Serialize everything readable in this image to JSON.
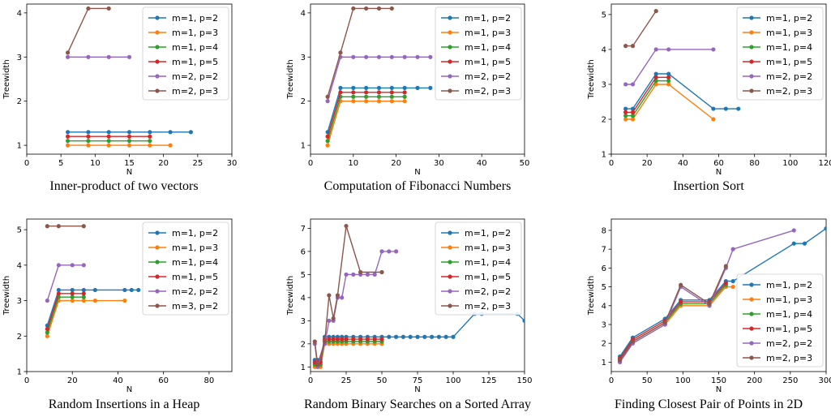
{
  "figure": {
    "colors": {
      "m=1, p=2": "#1f77b4",
      "m=1, p=3": "#ff7f0e",
      "m=1, p=4": "#2ca02c",
      "m=1, p=5": "#d62728",
      "m=2, p=2": "#9467bd",
      "m=2, p=3": "#8c564b",
      "m=3, p=2": "#8c564b"
    }
  },
  "chart_data": [
    {
      "type": "line",
      "caption": "Inner-product of two vectors",
      "xlabel": "N",
      "ylabel": "Treewidth",
      "xlim": [
        0,
        30
      ],
      "ylim": [
        0.8,
        4.2
      ],
      "xticks": [
        0,
        5,
        10,
        15,
        20,
        25,
        30
      ],
      "yticks": [
        1,
        2,
        3,
        4
      ],
      "legend": "top-right",
      "series": [
        {
          "name": "m=1, p=2",
          "x": [
            6,
            9,
            12,
            15,
            18,
            21,
            24
          ],
          "y": [
            1.3,
            1.3,
            1.3,
            1.3,
            1.3,
            1.3,
            1.3
          ]
        },
        {
          "name": "m=1, p=3",
          "x": [
            6,
            9,
            12,
            15,
            18,
            21
          ],
          "y": [
            1.0,
            1.0,
            1.0,
            1.0,
            1.0,
            1.0
          ]
        },
        {
          "name": "m=1, p=4",
          "x": [
            6,
            9,
            12,
            15,
            18
          ],
          "y": [
            1.1,
            1.1,
            1.1,
            1.1,
            1.1
          ]
        },
        {
          "name": "m=1, p=5",
          "x": [
            6,
            9,
            12,
            15,
            18
          ],
          "y": [
            1.2,
            1.2,
            1.2,
            1.2,
            1.2
          ]
        },
        {
          "name": "m=2, p=2",
          "x": [
            6,
            9,
            12,
            15
          ],
          "y": [
            3.0,
            3.0,
            3.0,
            3.0
          ]
        },
        {
          "name": "m=2, p=3",
          "x": [
            6,
            9,
            12
          ],
          "y": [
            3.1,
            4.1,
            4.1
          ]
        }
      ]
    },
    {
      "type": "line",
      "caption": "Computation of Fibonacci Numbers",
      "xlabel": "N",
      "ylabel": "Treewidth",
      "xlim": [
        0,
        50
      ],
      "ylim": [
        0.8,
        4.2
      ],
      "xticks": [
        0,
        10,
        20,
        30,
        40,
        50
      ],
      "yticks": [
        1,
        2,
        3,
        4
      ],
      "legend": "top-right",
      "series": [
        {
          "name": "m=1, p=2",
          "x": [
            4,
            7,
            10,
            13,
            16,
            19,
            22,
            25,
            28
          ],
          "y": [
            1.3,
            2.3,
            2.3,
            2.3,
            2.3,
            2.3,
            2.3,
            2.3,
            2.3
          ]
        },
        {
          "name": "m=1, p=3",
          "x": [
            4,
            7,
            10,
            13,
            16,
            19,
            22
          ],
          "y": [
            1.0,
            2.0,
            2.0,
            2.0,
            2.0,
            2.0,
            2.0
          ]
        },
        {
          "name": "m=1, p=4",
          "x": [
            4,
            7,
            10,
            13,
            16,
            19,
            22
          ],
          "y": [
            1.1,
            2.1,
            2.1,
            2.1,
            2.1,
            2.1,
            2.1
          ]
        },
        {
          "name": "m=1, p=5",
          "x": [
            4,
            7,
            10,
            13,
            16,
            19,
            22
          ],
          "y": [
            1.2,
            2.2,
            2.2,
            2.2,
            2.2,
            2.2,
            2.2
          ]
        },
        {
          "name": "m=2, p=2",
          "x": [
            4,
            7,
            10,
            13,
            16,
            19,
            22,
            25,
            28
          ],
          "y": [
            2.0,
            3.0,
            3.0,
            3.0,
            3.0,
            3.0,
            3.0,
            3.0,
            3.0
          ]
        },
        {
          "name": "m=2, p=3",
          "x": [
            4,
            7,
            10,
            13,
            16,
            19
          ],
          "y": [
            2.1,
            3.1,
            4.1,
            4.1,
            4.1,
            4.1
          ]
        }
      ]
    },
    {
      "type": "line",
      "caption": "Insertion Sort",
      "xlabel": "N",
      "ylabel": "Treewidth",
      "xlim": [
        0,
        120
      ],
      "ylim": [
        1,
        5.3
      ],
      "xticks": [
        0,
        20,
        40,
        60,
        80,
        100,
        120
      ],
      "yticks": [
        1,
        2,
        3,
        4,
        5
      ],
      "legend": "top-right",
      "series": [
        {
          "name": "m=1, p=2",
          "x": [
            8,
            12,
            25,
            32,
            57,
            64,
            71
          ],
          "y": [
            2.3,
            2.3,
            3.3,
            3.3,
            2.3,
            2.3,
            2.3
          ]
        },
        {
          "name": "m=1, p=3",
          "x": [
            8,
            12,
            25,
            32,
            57
          ],
          "y": [
            2.0,
            2.0,
            3.0,
            3.0,
            2.0
          ]
        },
        {
          "name": "m=1, p=4",
          "x": [
            8,
            12,
            25,
            32
          ],
          "y": [
            2.1,
            2.1,
            3.1,
            3.1
          ]
        },
        {
          "name": "m=1, p=5",
          "x": [
            8,
            12,
            25,
            32
          ],
          "y": [
            2.2,
            2.2,
            3.2,
            3.2
          ]
        },
        {
          "name": "m=2, p=2",
          "x": [
            8,
            12,
            25,
            32,
            57
          ],
          "y": [
            3.0,
            3.0,
            4.0,
            4.0,
            4.0
          ]
        },
        {
          "name": "m=2, p=3",
          "x": [
            8,
            12,
            25
          ],
          "y": [
            4.1,
            4.1,
            5.1
          ]
        }
      ]
    },
    {
      "type": "line",
      "caption": "Random Insertions in a Heap",
      "xlabel": "N",
      "ylabel": "Treewidth",
      "xlim": [
        0,
        90
      ],
      "ylim": [
        1,
        5.3
      ],
      "xticks": [
        0,
        20,
        40,
        60,
        80
      ],
      "yticks": [
        1,
        2,
        3,
        4,
        5
      ],
      "legend": "top-right",
      "series": [
        {
          "name": "m=1, p=2",
          "x": [
            9,
            14,
            20,
            25,
            30,
            43,
            46,
            49
          ],
          "y": [
            2.3,
            3.3,
            3.3,
            3.3,
            3.3,
            3.3,
            3.3,
            3.3
          ]
        },
        {
          "name": "m=1, p=3",
          "x": [
            9,
            14,
            20,
            25,
            30,
            43
          ],
          "y": [
            2.0,
            3.0,
            3.0,
            3.0,
            3.0,
            3.0
          ]
        },
        {
          "name": "m=1, p=4",
          "x": [
            9,
            14,
            20,
            25
          ],
          "y": [
            2.1,
            3.1,
            3.1,
            3.1
          ]
        },
        {
          "name": "m=1, p=5",
          "x": [
            9,
            14,
            20,
            25
          ],
          "y": [
            2.2,
            3.2,
            3.2,
            3.2
          ]
        },
        {
          "name": "m=2, p=2",
          "x": [
            9,
            14,
            20,
            25
          ],
          "y": [
            3.0,
            4.0,
            4.0,
            4.0
          ]
        },
        {
          "name": "m=3, p=2",
          "x": [
            9,
            14,
            25
          ],
          "y": [
            5.1,
            5.1,
            5.1
          ]
        }
      ]
    },
    {
      "type": "line",
      "caption": "Random Binary Searches on a Sorted Array",
      "xlabel": "N",
      "ylabel": "Treewidth",
      "xlim": [
        0,
        150
      ],
      "ylim": [
        0.8,
        7.4
      ],
      "xticks": [
        0,
        25,
        50,
        75,
        100,
        125,
        150
      ],
      "yticks": [
        1,
        2,
        3,
        4,
        5,
        6,
        7
      ],
      "legend": "top-right",
      "series": [
        {
          "name": "m=1, p=2",
          "x": [
            3,
            5,
            7,
            10,
            13,
            16,
            19,
            22,
            25,
            30,
            35,
            40,
            45,
            50,
            55,
            60,
            65,
            70,
            75,
            80,
            85,
            90,
            95,
            100,
            115,
            120,
            145,
            150
          ],
          "y": [
            1.3,
            1.3,
            1.3,
            2.3,
            2.3,
            2.3,
            2.3,
            2.3,
            2.3,
            2.3,
            2.3,
            2.3,
            2.3,
            2.3,
            2.3,
            2.3,
            2.3,
            2.3,
            2.3,
            2.3,
            2.3,
            2.3,
            2.3,
            2.3,
            3.3,
            3.3,
            3.3,
            3.0
          ]
        },
        {
          "name": "m=1, p=3",
          "x": [
            3,
            5,
            7,
            10,
            13,
            16,
            19,
            22,
            25,
            30,
            35,
            40,
            45,
            50
          ],
          "y": [
            1.0,
            1.0,
            1.0,
            2.0,
            2.0,
            2.0,
            2.0,
            2.0,
            2.0,
            2.0,
            2.0,
            2.0,
            2.0,
            2.0
          ]
        },
        {
          "name": "m=1, p=4",
          "x": [
            3,
            5,
            7,
            10,
            13,
            16,
            19,
            22,
            25,
            30,
            35,
            40,
            45,
            50
          ],
          "y": [
            1.1,
            1.1,
            1.1,
            2.1,
            2.1,
            2.1,
            2.1,
            2.1,
            2.1,
            2.1,
            2.1,
            2.1,
            2.1,
            2.1
          ]
        },
        {
          "name": "m=1, p=5",
          "x": [
            3,
            5,
            7,
            10,
            13,
            16,
            19,
            22,
            25,
            30,
            35,
            40,
            45,
            50
          ],
          "y": [
            1.2,
            1.2,
            1.2,
            2.2,
            2.2,
            2.2,
            2.2,
            2.2,
            2.2,
            2.2,
            2.2,
            2.2,
            2.2,
            2.2
          ]
        },
        {
          "name": "m=2, p=2",
          "x": [
            3,
            5,
            10,
            13,
            16,
            19,
            22,
            25,
            30,
            35,
            40,
            45,
            50,
            55,
            60
          ],
          "y": [
            2.0,
            1.0,
            2.0,
            3.0,
            3.0,
            4.0,
            4.0,
            5.0,
            5.0,
            5.0,
            5.0,
            5.0,
            6.0,
            6.0,
            6.0
          ]
        },
        {
          "name": "m=2, p=3",
          "x": [
            3,
            5,
            10,
            13,
            16,
            19,
            25,
            35,
            50
          ],
          "y": [
            2.1,
            1.1,
            2.1,
            4.1,
            3.1,
            4.1,
            7.1,
            5.1,
            5.1
          ]
        }
      ]
    },
    {
      "type": "line",
      "caption": "Finding Closest Pair of Points in 2D",
      "xlabel": "N",
      "ylabel": "Treewidth",
      "xlim": [
        0,
        300
      ],
      "ylim": [
        0.5,
        8.6
      ],
      "xticks": [
        0,
        50,
        100,
        150,
        200,
        250,
        300
      ],
      "yticks": [
        1,
        2,
        3,
        4,
        5,
        6,
        7,
        8
      ],
      "legend": "lower-right",
      "series": [
        {
          "name": "m=1, p=2",
          "x": [
            12,
            30,
            75,
            97,
            137,
            160,
            170,
            255,
            270,
            300
          ],
          "y": [
            1.3,
            2.3,
            3.3,
            4.3,
            4.3,
            5.3,
            5.3,
            7.3,
            7.3,
            8.1
          ]
        },
        {
          "name": "m=1, p=3",
          "x": [
            12,
            30,
            75,
            97,
            137,
            160,
            170
          ],
          "y": [
            1.0,
            2.0,
            3.0,
            4.0,
            4.0,
            5.0,
            5.0
          ]
        },
        {
          "name": "m=1, p=4",
          "x": [
            12,
            30,
            75,
            97,
            137,
            160
          ],
          "y": [
            1.1,
            2.1,
            3.1,
            4.1,
            4.1,
            5.1
          ]
        },
        {
          "name": "m=1, p=5",
          "x": [
            12,
            30,
            75,
            97,
            137,
            160
          ],
          "y": [
            1.2,
            2.2,
            3.2,
            4.2,
            4.2,
            5.2
          ]
        },
        {
          "name": "m=2, p=2",
          "x": [
            12,
            30,
            75,
            97,
            137,
            160,
            170,
            255
          ],
          "y": [
            1.0,
            2.0,
            3.0,
            5.0,
            4.0,
            6.0,
            7.0,
            8.0
          ]
        },
        {
          "name": "m=2, p=3",
          "x": [
            12,
            30,
            75,
            97,
            137,
            160
          ],
          "y": [
            1.1,
            2.1,
            3.1,
            5.1,
            4.1,
            6.1
          ]
        }
      ]
    }
  ]
}
